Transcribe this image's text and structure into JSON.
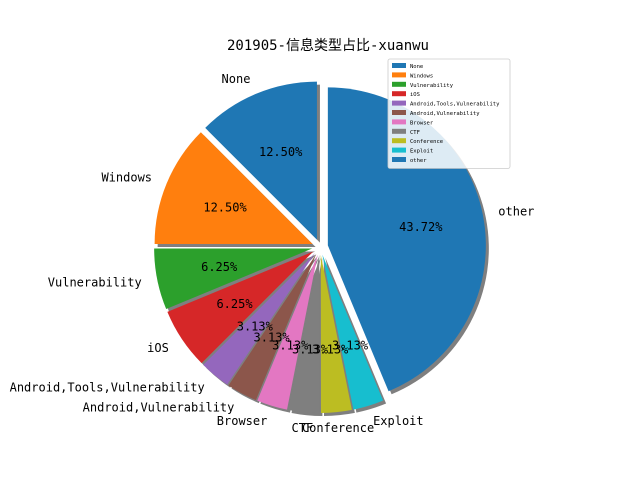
{
  "chart_data": {
    "type": "pie",
    "title": "201905-信息类型占比-xuanwu",
    "categories": [
      "None",
      "Windows",
      "Vulnerability",
      "iOS",
      "Android,Tools,Vulnerability",
      "Android,Vulnerability",
      "Browser",
      "CTF",
      "Conference",
      "Exploit",
      "other"
    ],
    "values": [
      12.5,
      12.5,
      6.25,
      6.25,
      3.13,
      3.13,
      3.13,
      3.13,
      3.13,
      3.13,
      43.72
    ],
    "value_labels": [
      "12.50%",
      "12.50%",
      "6.25%",
      "6.25%",
      "3.13%",
      "3.13%",
      "3.13%",
      "3.13%",
      "3.13%",
      "3.13%",
      "43.72%"
    ],
    "colors": [
      "#1f77b4",
      "#ff7f0e",
      "#2ca02c",
      "#d62728",
      "#9467bd",
      "#8c564b",
      "#e377c2",
      "#7f7f7f",
      "#bcbd22",
      "#17becf",
      "#1f77b4"
    ],
    "start_angle_deg": 90,
    "direction": "counterclockwise",
    "exploded": true,
    "shadow": true,
    "legend_position": "top-right"
  }
}
